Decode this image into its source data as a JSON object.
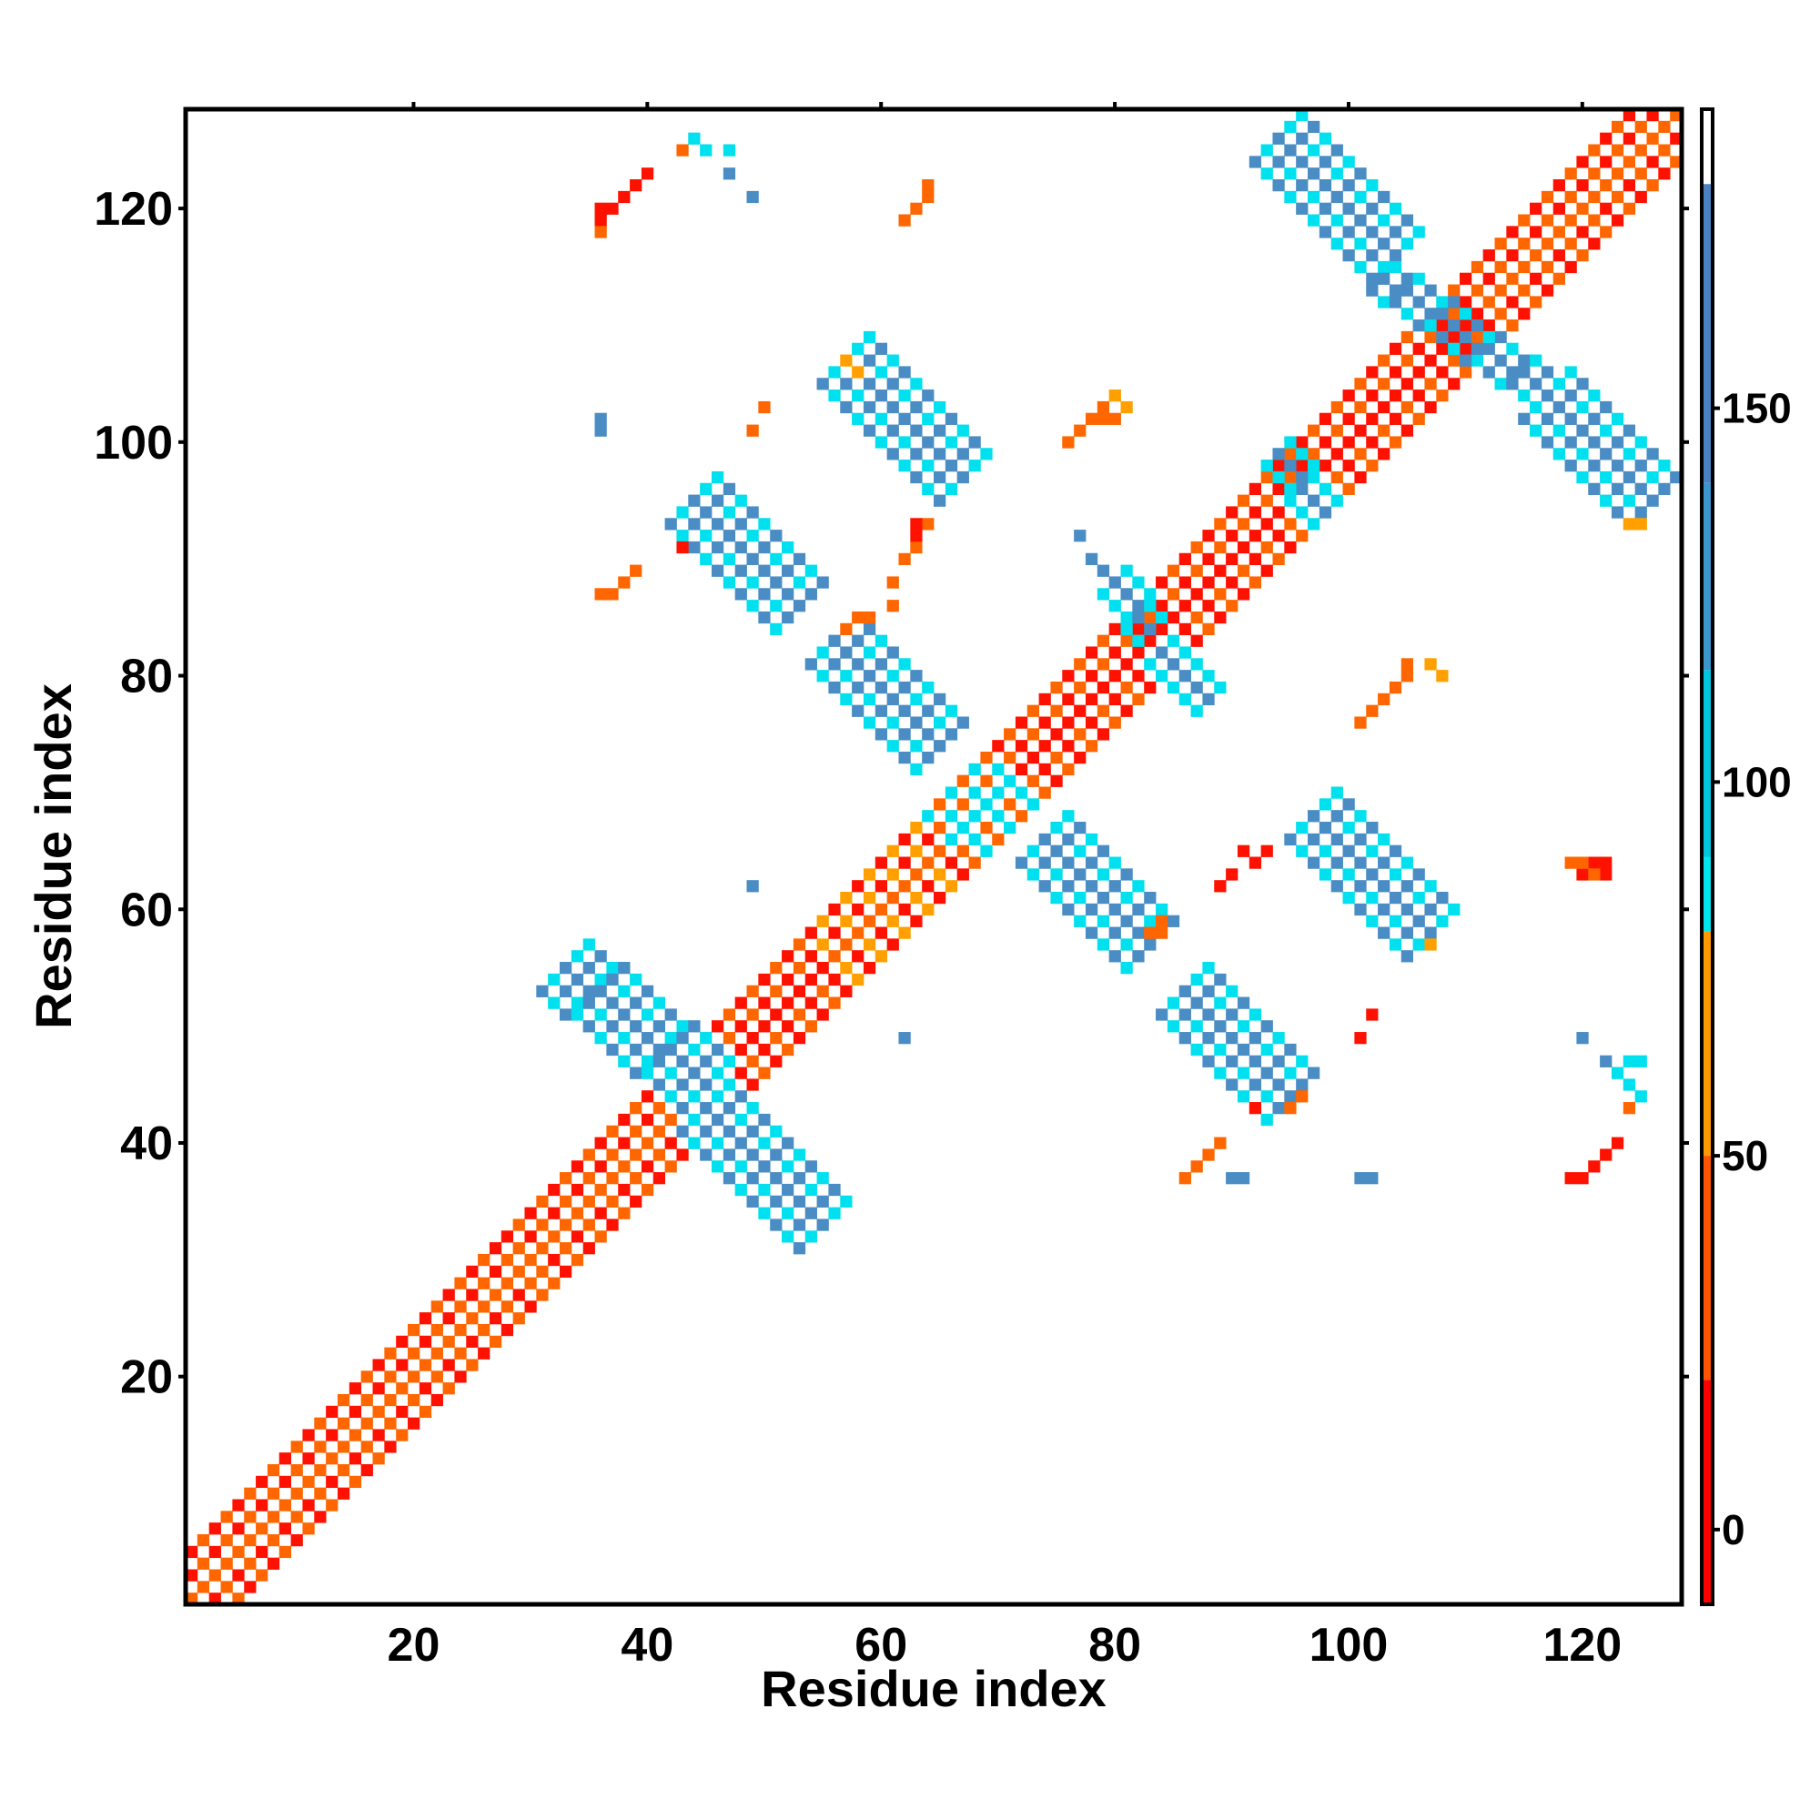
{
  "chart_data": {
    "type": "heatmap",
    "title": "",
    "xlabel": "Residue index",
    "ylabel": "Residue index",
    "xlim": [
      0.5,
      128.5
    ],
    "ylim": [
      0.5,
      128.5
    ],
    "x_ticks": [
      20,
      40,
      60,
      80,
      100,
      120
    ],
    "y_ticks": [
      20,
      40,
      60,
      80,
      100,
      120
    ],
    "x_tick_labels": [
      "20",
      "40",
      "60",
      "80",
      "100",
      "120"
    ],
    "y_tick_labels": [
      "20",
      "40",
      "60",
      "80",
      "100",
      "120"
    ],
    "grid": false,
    "legend": "colorbar-right",
    "colorbar": {
      "range": [
        -10,
        190
      ],
      "ticks": [
        0,
        50,
        100,
        150
      ],
      "tick_labels": [
        "0",
        "50",
        "100",
        "150"
      ],
      "bands": [
        {
          "from": -10,
          "to": 20,
          "color": "#ff0000"
        },
        {
          "from": 20,
          "to": 50,
          "color": "#ff5500"
        },
        {
          "from": 50,
          "to": 80,
          "color": "#ff9900"
        },
        {
          "from": 80,
          "to": 90,
          "color": "#00e5ee"
        },
        {
          "from": 90,
          "to": 115,
          "color": "#00c5dd"
        },
        {
          "from": 115,
          "to": 140,
          "color": "#3a96cc"
        },
        {
          "from": 140,
          "to": 180,
          "color": "#4a82c0"
        },
        {
          "from": 180,
          "to": 190,
          "color": "#ffffff"
        }
      ]
    },
    "colors": {
      "red": "#ff1100",
      "orange": "#ff6600",
      "amber": "#ffa000",
      "cyan": "#00e0ee",
      "blue": "#4a8cc4"
    },
    "regions": [
      {
        "kind": "band",
        "x1": 1,
        "y1": 1,
        "x2": 30,
        "y2": 30,
        "halfwidth": 2,
        "center": "orange",
        "sides": [
          "red",
          "orange"
        ]
      },
      {
        "kind": "band",
        "x1": 30,
        "y1": 30,
        "x2": 44,
        "y2": 44,
        "halfwidth": 2,
        "center": "orange",
        "sides": [
          "red",
          "orange"
        ]
      },
      {
        "kind": "band",
        "x1": 44,
        "y1": 44,
        "x2": 56,
        "y2": 56,
        "halfwidth": 2,
        "center": "red",
        "sides": [
          "red",
          "orange"
        ]
      },
      {
        "kind": "band",
        "x1": 56,
        "y1": 56,
        "x2": 66,
        "y2": 66,
        "halfwidth": 2,
        "center": "orange",
        "sides": [
          "red",
          "amber"
        ]
      },
      {
        "kind": "band",
        "x1": 66,
        "y1": 66,
        "x2": 72,
        "y2": 72,
        "halfwidth": 2,
        "center": "cyan",
        "sides": [
          "cyan",
          "orange"
        ]
      },
      {
        "kind": "band",
        "x1": 72,
        "y1": 72,
        "x2": 86,
        "y2": 86,
        "halfwidth": 2,
        "center": "red",
        "sides": [
          "red",
          "orange"
        ]
      },
      {
        "kind": "band",
        "x1": 86,
        "y1": 86,
        "x2": 112,
        "y2": 112,
        "halfwidth": 2,
        "center": "red",
        "sides": [
          "red",
          "orange"
        ]
      },
      {
        "kind": "band",
        "x1": 112,
        "y1": 112,
        "x2": 128,
        "y2": 128,
        "halfwidth": 2,
        "center": "orange",
        "sides": [
          "red",
          "orange"
        ]
      },
      {
        "kind": "band",
        "x1": 33,
        "y1": 55,
        "x2": 45,
        "y2": 45,
        "halfwidth": 2,
        "center": "blue",
        "sides": [
          "blue",
          "cyan"
        ]
      },
      {
        "kind": "band",
        "x1": 45,
        "y1": 43,
        "x2": 55,
        "y2": 33,
        "halfwidth": 2,
        "center": "blue",
        "sides": [
          "blue",
          "cyan"
        ]
      },
      {
        "kind": "band",
        "x1": 44,
        "y1": 95,
        "x2": 53,
        "y2": 86,
        "halfwidth": 2,
        "center": "blue",
        "sides": [
          "blue",
          "cyan"
        ]
      },
      {
        "kind": "band",
        "x1": 57,
        "y1": 107,
        "x2": 67,
        "y2": 97,
        "halfwidth": 2,
        "center": "blue",
        "sides": [
          "blue",
          "cyan"
        ]
      },
      {
        "kind": "band",
        "x1": 56,
        "y1": 83,
        "x2": 65,
        "y2": 74,
        "halfwidth": 2,
        "center": "blue",
        "sides": [
          "blue",
          "cyan"
        ]
      },
      {
        "kind": "band",
        "x1": 74,
        "y1": 66,
        "x2": 83,
        "y2": 57,
        "halfwidth": 2,
        "center": "blue",
        "sides": [
          "blue",
          "cyan"
        ]
      },
      {
        "kind": "band",
        "x1": 86,
        "y1": 53,
        "x2": 95,
        "y2": 44,
        "halfwidth": 2,
        "center": "blue",
        "sides": [
          "blue",
          "cyan"
        ]
      },
      {
        "kind": "band",
        "x1": 97,
        "y1": 68,
        "x2": 107,
        "y2": 58,
        "halfwidth": 2,
        "center": "blue",
        "sides": [
          "blue",
          "cyan"
        ]
      },
      {
        "kind": "band",
        "x1": 94,
        "y1": 126,
        "x2": 104,
        "y2": 116,
        "halfwidth": 2,
        "center": "blue",
        "sides": [
          "blue",
          "cyan"
        ]
      },
      {
        "kind": "band",
        "x1": 117,
        "y1": 104,
        "x2": 126,
        "y2": 95,
        "halfwidth": 2,
        "center": "blue",
        "sides": [
          "blue",
          "cyan"
        ]
      },
      {
        "kind": "band",
        "x1": 103,
        "y1": 114,
        "x2": 116,
        "y2": 105,
        "halfwidth": 1,
        "center": "blue",
        "sides": [
          "blue",
          "cyan"
        ]
      },
      {
        "kind": "band",
        "x1": 94,
        "y1": 99,
        "x2": 98,
        "y2": 94,
        "halfwidth": 1,
        "center": "blue",
        "sides": [
          "cyan",
          "cyan"
        ]
      },
      {
        "kind": "band",
        "x1": 80,
        "y1": 88,
        "x2": 83,
        "y2": 84,
        "halfwidth": 1,
        "center": "blue",
        "sides": [
          "cyan",
          "cyan"
        ]
      },
      {
        "kind": "band",
        "x1": 84,
        "y1": 82,
        "x2": 88,
        "y2": 78,
        "halfwidth": 1,
        "center": "blue",
        "sides": [
          "cyan",
          "cyan"
        ]
      },
      {
        "kind": "cells",
        "color": "red",
        "cells": [
          [
            37,
            120
          ],
          [
            38,
            121
          ],
          [
            39,
            122
          ],
          [
            40,
            123
          ],
          [
            36,
            119
          ],
          [
            36,
            120
          ]
        ]
      },
      {
        "kind": "cells",
        "color": "orange",
        "cells": [
          [
            36,
            118
          ],
          [
            43,
            125
          ],
          [
            63,
            120
          ],
          [
            64,
            121
          ],
          [
            64,
            122
          ],
          [
            62,
            119
          ]
        ]
      },
      {
        "kind": "cells",
        "color": "cyan",
        "cells": [
          [
            44,
            126
          ],
          [
            45,
            125
          ],
          [
            47,
            125
          ]
        ]
      },
      {
        "kind": "cells",
        "color": "blue",
        "cells": [
          [
            47,
            123
          ],
          [
            49,
            121
          ],
          [
            36,
            102
          ],
          [
            36,
            101
          ],
          [
            49,
            62
          ],
          [
            62,
            49
          ],
          [
            77,
            92
          ],
          [
            78,
            90
          ],
          [
            79,
            89
          ],
          [
            120,
            49
          ],
          [
            122,
            47
          ],
          [
            90,
            37
          ],
          [
            91,
            37
          ],
          [
            101,
            37
          ],
          [
            102,
            37
          ]
        ]
      },
      {
        "kind": "cells",
        "color": "orange",
        "cells": [
          [
            50,
            103
          ],
          [
            49,
            101
          ],
          [
            36,
            87
          ],
          [
            37,
            87
          ],
          [
            38,
            88
          ],
          [
            39,
            89
          ],
          [
            57,
            84
          ],
          [
            58,
            85
          ],
          [
            59,
            85
          ],
          [
            61,
            88
          ],
          [
            62,
            90
          ],
          [
            63,
            91
          ],
          [
            63,
            92
          ],
          [
            64,
            93
          ],
          [
            61,
            86
          ]
        ]
      },
      {
        "kind": "cells",
        "color": "amber",
        "cells": [
          [
            80,
            104
          ],
          [
            81,
            103
          ],
          [
            57,
            107
          ],
          [
            58,
            106
          ],
          [
            107,
            81
          ],
          [
            108,
            80
          ],
          [
            124,
            93
          ],
          [
            125,
            93
          ],
          [
            107,
            57
          ]
        ]
      },
      {
        "kind": "cells",
        "color": "orange",
        "cells": [
          [
            76,
            100
          ],
          [
            77,
            101
          ],
          [
            78,
            102
          ],
          [
            79,
            103
          ],
          [
            80,
            102
          ],
          [
            79,
            102
          ],
          [
            102,
            77
          ],
          [
            103,
            78
          ],
          [
            104,
            79
          ],
          [
            105,
            80
          ],
          [
            105,
            81
          ],
          [
            101,
            76
          ]
        ]
      },
      {
        "kind": "cells",
        "color": "red",
        "cells": [
          [
            43,
            91
          ],
          [
            63,
            93
          ],
          [
            63,
            92
          ],
          [
            91,
            65
          ],
          [
            92,
            64
          ],
          [
            93,
            65
          ],
          [
            89,
            62
          ],
          [
            90,
            63
          ],
          [
            101,
            49
          ],
          [
            102,
            51
          ],
          [
            92,
            43
          ],
          [
            119,
            37
          ],
          [
            120,
            37
          ],
          [
            121,
            38
          ],
          [
            122,
            39
          ],
          [
            123,
            40
          ],
          [
            120,
            63
          ],
          [
            121,
            64
          ],
          [
            122,
            64
          ],
          [
            122,
            63
          ]
        ]
      },
      {
        "kind": "cells",
        "color": "orange",
        "cells": [
          [
            86,
            37
          ],
          [
            87,
            38
          ],
          [
            88,
            39
          ],
          [
            89,
            40
          ],
          [
            84,
            59
          ],
          [
            83,
            58
          ],
          [
            84,
            58
          ],
          [
            125,
            44
          ],
          [
            95,
            43
          ],
          [
            96,
            44
          ],
          [
            124,
            43
          ],
          [
            119,
            64
          ],
          [
            120,
            64
          ],
          [
            121,
            63
          ]
        ]
      },
      {
        "kind": "cells",
        "color": "cyan",
        "cells": [
          [
            125,
            44
          ],
          [
            124,
            45
          ],
          [
            123,
            46
          ],
          [
            124,
            47
          ],
          [
            125,
            47
          ]
        ]
      }
    ]
  }
}
